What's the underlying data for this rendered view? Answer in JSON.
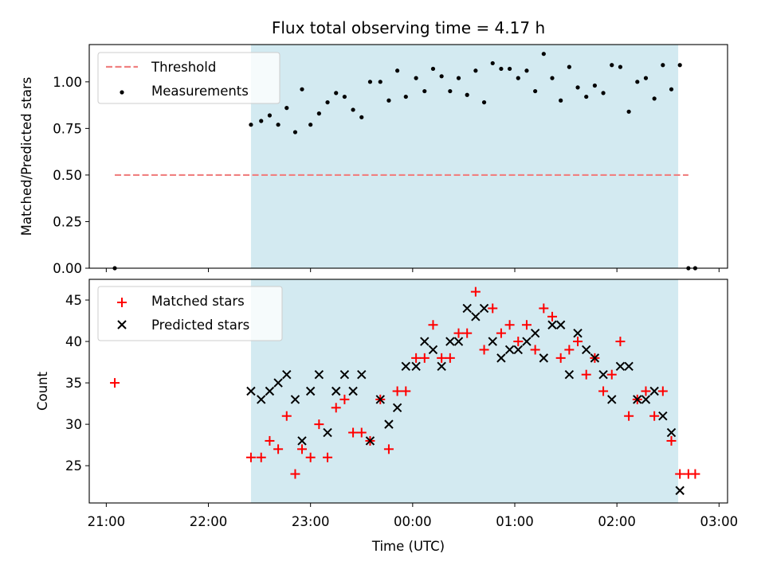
{
  "chart_data": [
    {
      "type": "scatter",
      "title": "Flux total observing time = 4.17 h",
      "xlabel": "",
      "ylabel": "Matched/Predicted stars",
      "ylim": [
        0,
        1.2
      ],
      "yticks": [
        0.0,
        0.25,
        0.5,
        0.75,
        1.0
      ],
      "ytick_labels": [
        "0.00",
        "0.25",
        "0.50",
        "0.75",
        "1.00"
      ],
      "xlim": [
        "20:50",
        "03:05"
      ],
      "x_unit": "time (UTC)",
      "shaded_interval": [
        "22:25",
        "02:36"
      ],
      "shade_color": "#d3eaf1",
      "threshold": {
        "name": "Threshold",
        "value": 0.5,
        "x_range": [
          "21:05",
          "02:42"
        ],
        "color": "#f08080"
      },
      "series": [
        {
          "name": "Measurements",
          "color": "#000000",
          "x": [
            "21:05",
            "22:25",
            "22:31",
            "22:36",
            "22:41",
            "22:46",
            "22:51",
            "22:55",
            "23:00",
            "23:05",
            "23:10",
            "23:15",
            "23:20",
            "23:25",
            "23:30",
            "23:35",
            "23:41",
            "23:46",
            "23:51",
            "23:56",
            "24:02",
            "24:07",
            "24:12",
            "24:17",
            "24:22",
            "24:27",
            "24:32",
            "24:37",
            "24:42",
            "24:47",
            "24:52",
            "24:57",
            "25:02",
            "25:07",
            "25:12",
            "25:17",
            "25:22",
            "25:27",
            "25:32",
            "25:37",
            "25:42",
            "25:47",
            "25:52",
            "25:57",
            "26:02",
            "26:07",
            "26:12",
            "26:17",
            "26:22",
            "26:27",
            "26:32",
            "26:37",
            "26:42",
            "26:46"
          ],
          "y": [
            0.0,
            0.77,
            0.79,
            0.82,
            0.77,
            0.86,
            0.73,
            0.96,
            0.77,
            0.83,
            0.89,
            0.94,
            0.92,
            0.85,
            0.81,
            1.0,
            1.0,
            0.9,
            1.06,
            0.92,
            1.02,
            0.95,
            1.07,
            1.03,
            0.95,
            1.02,
            0.93,
            1.06,
            0.89,
            1.1,
            1.07,
            1.07,
            1.02,
            1.06,
            0.95,
            1.15,
            1.02,
            0.9,
            1.08,
            0.97,
            0.92,
            0.98,
            0.94,
            1.09,
            1.08,
            0.84,
            1.0,
            1.02,
            0.91,
            1.09,
            0.96,
            1.09,
            0.0,
            0.0
          ]
        }
      ],
      "legend_placement": "top-left",
      "grid": false
    },
    {
      "type": "scatter",
      "title": "",
      "xlabel": "Time (UTC)",
      "ylabel": "Count",
      "ylim": [
        20.5,
        47.5
      ],
      "yticks": [
        25,
        30,
        35,
        40,
        45
      ],
      "ytick_labels": [
        "25",
        "30",
        "35",
        "40",
        "45"
      ],
      "xlim": [
        "20:50",
        "03:05"
      ],
      "xticks": [
        "21:00",
        "22:00",
        "23:00",
        "00:00",
        "01:00",
        "02:00",
        "03:00"
      ],
      "shaded_interval": [
        "22:25",
        "02:36"
      ],
      "shade_color": "#d3eaf1",
      "series": [
        {
          "name": "Matched stars",
          "marker": "+",
          "color": "#ff0000",
          "x": [
            "21:05",
            "22:25",
            "22:31",
            "22:36",
            "22:41",
            "22:46",
            "22:51",
            "22:55",
            "23:00",
            "23:05",
            "23:10",
            "23:15",
            "23:20",
            "23:25",
            "23:30",
            "23:35",
            "23:41",
            "23:46",
            "23:51",
            "23:56",
            "24:02",
            "24:07",
            "24:12",
            "24:17",
            "24:22",
            "24:27",
            "24:32",
            "24:37",
            "24:42",
            "24:47",
            "24:52",
            "24:57",
            "25:02",
            "25:07",
            "25:12",
            "25:17",
            "25:22",
            "25:27",
            "25:32",
            "25:37",
            "25:42",
            "25:47",
            "25:52",
            "25:57",
            "26:02",
            "26:07",
            "26:12",
            "26:17",
            "26:22",
            "26:27",
            "26:32",
            "26:37",
            "26:42",
            "26:46"
          ],
          "y": [
            35,
            26,
            26,
            28,
            27,
            31,
            24,
            27,
            26,
            30,
            26,
            32,
            33,
            29,
            29,
            28,
            33,
            27,
            34,
            34,
            38,
            38,
            42,
            38,
            38,
            41,
            41,
            46,
            39,
            44,
            41,
            42,
            40,
            42,
            39,
            44,
            43,
            38,
            39,
            40,
            36,
            38,
            34,
            36,
            40,
            31,
            33,
            34,
            31,
            34,
            28,
            24,
            24,
            24
          ]
        },
        {
          "name": "Predicted stars",
          "marker": "x",
          "color": "#000000",
          "x": [
            "22:25",
            "22:31",
            "22:36",
            "22:41",
            "22:46",
            "22:51",
            "22:55",
            "23:00",
            "23:05",
            "23:10",
            "23:15",
            "23:20",
            "23:25",
            "23:30",
            "23:35",
            "23:41",
            "23:46",
            "23:51",
            "23:56",
            "24:02",
            "24:07",
            "24:12",
            "24:17",
            "24:22",
            "24:27",
            "24:32",
            "24:37",
            "24:42",
            "24:47",
            "24:52",
            "24:57",
            "25:02",
            "25:07",
            "25:12",
            "25:17",
            "25:22",
            "25:27",
            "25:32",
            "25:37",
            "25:42",
            "25:47",
            "25:52",
            "25:57",
            "26:02",
            "26:07",
            "26:12",
            "26:17",
            "26:22",
            "26:27",
            "26:32",
            "26:37"
          ],
          "y": [
            34,
            33,
            34,
            35,
            36,
            33,
            28,
            34,
            36,
            29,
            34,
            36,
            34,
            36,
            28,
            33,
            30,
            32,
            37,
            37,
            40,
            39,
            37,
            40,
            40,
            44,
            43,
            44,
            40,
            38,
            39,
            39,
            40,
            41,
            38,
            42,
            42,
            36,
            41,
            39,
            38,
            36,
            33,
            37,
            37,
            33,
            33,
            34,
            31,
            29,
            22
          ]
        }
      ],
      "legend_placement": "top-left",
      "grid": false
    }
  ]
}
